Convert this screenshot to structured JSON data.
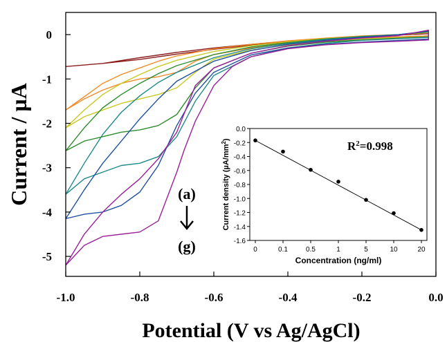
{
  "chart_data": [
    {
      "type": "line",
      "xlabel": "Potential (V vs Ag/AgCl)",
      "ylabel": "Current / µA",
      "xlim": [
        -1.0,
        0.0
      ],
      "ylim": [
        -5.45,
        0.5
      ],
      "x_ticks": [
        "-1.0",
        "-0.8",
        "-0.6",
        "-0.4",
        "-0.2",
        "0.0"
      ],
      "y_ticks": [
        "0",
        "-1",
        "-2",
        "-3",
        "-4",
        "-5"
      ],
      "grid": false,
      "annotations": {
        "top": "(a)",
        "bottom": "(g)"
      },
      "series": [
        {
          "color": "#8b1a1a",
          "x": [
            -1.0,
            -0.9,
            -0.8,
            -0.7,
            -0.6,
            -0.5,
            -0.4,
            -0.3,
            -0.2,
            -0.1,
            -0.02,
            -0.02,
            -0.1,
            -0.2,
            -0.3,
            -0.4,
            -0.5,
            -0.6,
            -0.7,
            -0.8,
            -0.9,
            -1.0
          ],
          "y": [
            -0.72,
            -0.65,
            -0.56,
            -0.44,
            -0.33,
            -0.24,
            -0.17,
            -0.12,
            -0.08,
            -0.05,
            -0.03,
            0.02,
            -0.01,
            -0.05,
            -0.1,
            -0.15,
            -0.22,
            -0.3,
            -0.4,
            -0.52,
            -0.65,
            -0.72
          ]
        },
        {
          "color": "#f28c28",
          "x": [
            -1.0,
            -0.95,
            -0.9,
            -0.85,
            -0.8,
            -0.75,
            -0.7,
            -0.65,
            -0.6,
            -0.5,
            -0.4,
            -0.3,
            -0.2,
            -0.1,
            -0.02,
            -0.02,
            -0.1,
            -0.2,
            -0.3,
            -0.4,
            -0.5,
            -0.6,
            -0.7,
            -0.75,
            -0.8,
            -0.85,
            -0.9,
            -0.95,
            -1.0
          ],
          "y": [
            -1.7,
            -1.45,
            -1.25,
            -1.1,
            -1.0,
            -0.95,
            -0.85,
            -0.6,
            -0.45,
            -0.3,
            -0.2,
            -0.13,
            -0.08,
            -0.05,
            -0.03,
            0.05,
            0.0,
            -0.03,
            -0.08,
            -0.14,
            -0.22,
            -0.32,
            -0.48,
            -0.6,
            -0.75,
            -0.9,
            -1.1,
            -1.4,
            -1.7
          ]
        },
        {
          "color": "#c8c821",
          "x": [
            -1.0,
            -0.95,
            -0.9,
            -0.85,
            -0.8,
            -0.75,
            -0.7,
            -0.65,
            -0.6,
            -0.5,
            -0.4,
            -0.3,
            -0.2,
            -0.1,
            -0.02,
            -0.02,
            -0.1,
            -0.2,
            -0.3,
            -0.4,
            -0.5,
            -0.6,
            -0.7,
            -0.75,
            -0.8,
            -0.85,
            -0.9,
            -0.95,
            -1.0
          ],
          "y": [
            -2.1,
            -1.85,
            -1.7,
            -1.55,
            -1.45,
            -1.35,
            -1.2,
            -0.85,
            -0.55,
            -0.35,
            -0.23,
            -0.15,
            -0.1,
            -0.07,
            -0.05,
            0.05,
            0.0,
            -0.04,
            -0.09,
            -0.16,
            -0.25,
            -0.38,
            -0.58,
            -0.72,
            -0.9,
            -1.1,
            -1.35,
            -1.7,
            -2.1
          ]
        },
        {
          "color": "#2e8b2e",
          "x": [
            -1.0,
            -0.95,
            -0.9,
            -0.85,
            -0.8,
            -0.75,
            -0.7,
            -0.65,
            -0.6,
            -0.5,
            -0.4,
            -0.3,
            -0.2,
            -0.1,
            -0.02,
            -0.02,
            -0.1,
            -0.2,
            -0.3,
            -0.4,
            -0.5,
            -0.6,
            -0.7,
            -0.75,
            -0.8,
            -0.85,
            -0.9,
            -0.95,
            -1.0
          ],
          "y": [
            -2.62,
            -2.4,
            -2.3,
            -2.2,
            -2.15,
            -2.05,
            -1.8,
            -1.2,
            -0.75,
            -0.42,
            -0.26,
            -0.17,
            -0.12,
            -0.08,
            -0.05,
            0.06,
            0.0,
            -0.04,
            -0.1,
            -0.18,
            -0.28,
            -0.45,
            -0.7,
            -0.88,
            -1.1,
            -1.35,
            -1.65,
            -2.1,
            -2.62
          ]
        },
        {
          "color": "#1f8a8a",
          "x": [
            -1.0,
            -0.95,
            -0.9,
            -0.85,
            -0.8,
            -0.75,
            -0.7,
            -0.65,
            -0.6,
            -0.5,
            -0.4,
            -0.3,
            -0.2,
            -0.1,
            -0.02,
            -0.02,
            -0.1,
            -0.2,
            -0.3,
            -0.4,
            -0.5,
            -0.6,
            -0.7,
            -0.75,
            -0.8,
            -0.85,
            -0.9,
            -0.95,
            -1.0
          ],
          "y": [
            -3.6,
            -3.25,
            -3.1,
            -2.95,
            -2.9,
            -2.75,
            -2.3,
            -1.5,
            -0.92,
            -0.5,
            -0.3,
            -0.2,
            -0.13,
            -0.09,
            -0.06,
            0.07,
            0.0,
            -0.05,
            -0.11,
            -0.2,
            -0.32,
            -0.52,
            -0.85,
            -1.08,
            -1.38,
            -1.75,
            -2.25,
            -2.9,
            -3.6
          ]
        },
        {
          "color": "#1f4fa0",
          "x": [
            -1.0,
            -0.95,
            -0.9,
            -0.85,
            -0.8,
            -0.75,
            -0.7,
            -0.65,
            -0.6,
            -0.5,
            -0.4,
            -0.3,
            -0.2,
            -0.1,
            -0.02,
            -0.02,
            -0.1,
            -0.2,
            -0.3,
            -0.4,
            -0.5,
            -0.6,
            -0.7,
            -0.75,
            -0.8,
            -0.85,
            -0.9,
            -0.95,
            -1.0
          ],
          "y": [
            -4.15,
            -4.05,
            -4.0,
            -3.85,
            -3.55,
            -2.95,
            -2.05,
            -1.32,
            -0.85,
            -0.46,
            -0.3,
            -0.22,
            -0.17,
            -0.13,
            -0.1,
            0.08,
            0.0,
            -0.06,
            -0.13,
            -0.22,
            -0.36,
            -0.6,
            -1.05,
            -1.45,
            -1.9,
            -2.4,
            -2.9,
            -3.5,
            -4.15
          ]
        },
        {
          "color": "#9b1f9b",
          "x": [
            -1.0,
            -0.95,
            -0.9,
            -0.85,
            -0.8,
            -0.75,
            -0.7,
            -0.68,
            -0.65,
            -0.6,
            -0.55,
            -0.5,
            -0.4,
            -0.3,
            -0.2,
            -0.1,
            -0.02,
            -0.02,
            -0.1,
            -0.2,
            -0.3,
            -0.4,
            -0.5,
            -0.6,
            -0.65,
            -0.7,
            -0.75,
            -0.8,
            -0.85,
            -0.9,
            -0.95,
            -1.0
          ],
          "y": [
            -5.2,
            -4.75,
            -4.55,
            -4.5,
            -4.45,
            -4.2,
            -3.1,
            -2.6,
            -1.95,
            -1.15,
            -0.72,
            -0.5,
            -0.32,
            -0.23,
            -0.18,
            -0.15,
            -0.12,
            0.1,
            -0.02,
            -0.08,
            -0.15,
            -0.25,
            -0.42,
            -0.75,
            -1.15,
            -2.2,
            -2.8,
            -3.25,
            -3.6,
            -4.0,
            -4.5,
            -5.2
          ]
        }
      ]
    },
    {
      "type": "scatter",
      "xlabel": "Concentration (ng/ml)",
      "ylabel": "Current density (µA/mm2)",
      "ylim": [
        -1.6,
        0.0
      ],
      "x_ticks": [
        "0",
        "0.1",
        "0.5",
        "1",
        "5",
        "10",
        "20"
      ],
      "y_ticks": [
        "0.0",
        "-0.2",
        "-0.4",
        "-0.6",
        "-0.8",
        "-1.0",
        "-1.2",
        "-1.4",
        "-1.6"
      ],
      "categories": [
        "0",
        "0.1",
        "0.5",
        "1",
        "5",
        "10",
        "20"
      ],
      "values": [
        -0.17,
        -0.33,
        -0.59,
        -0.76,
        -1.02,
        -1.21,
        -1.45
      ],
      "fit_line": true,
      "annotation": "R2=0.998",
      "grid": false
    }
  ]
}
